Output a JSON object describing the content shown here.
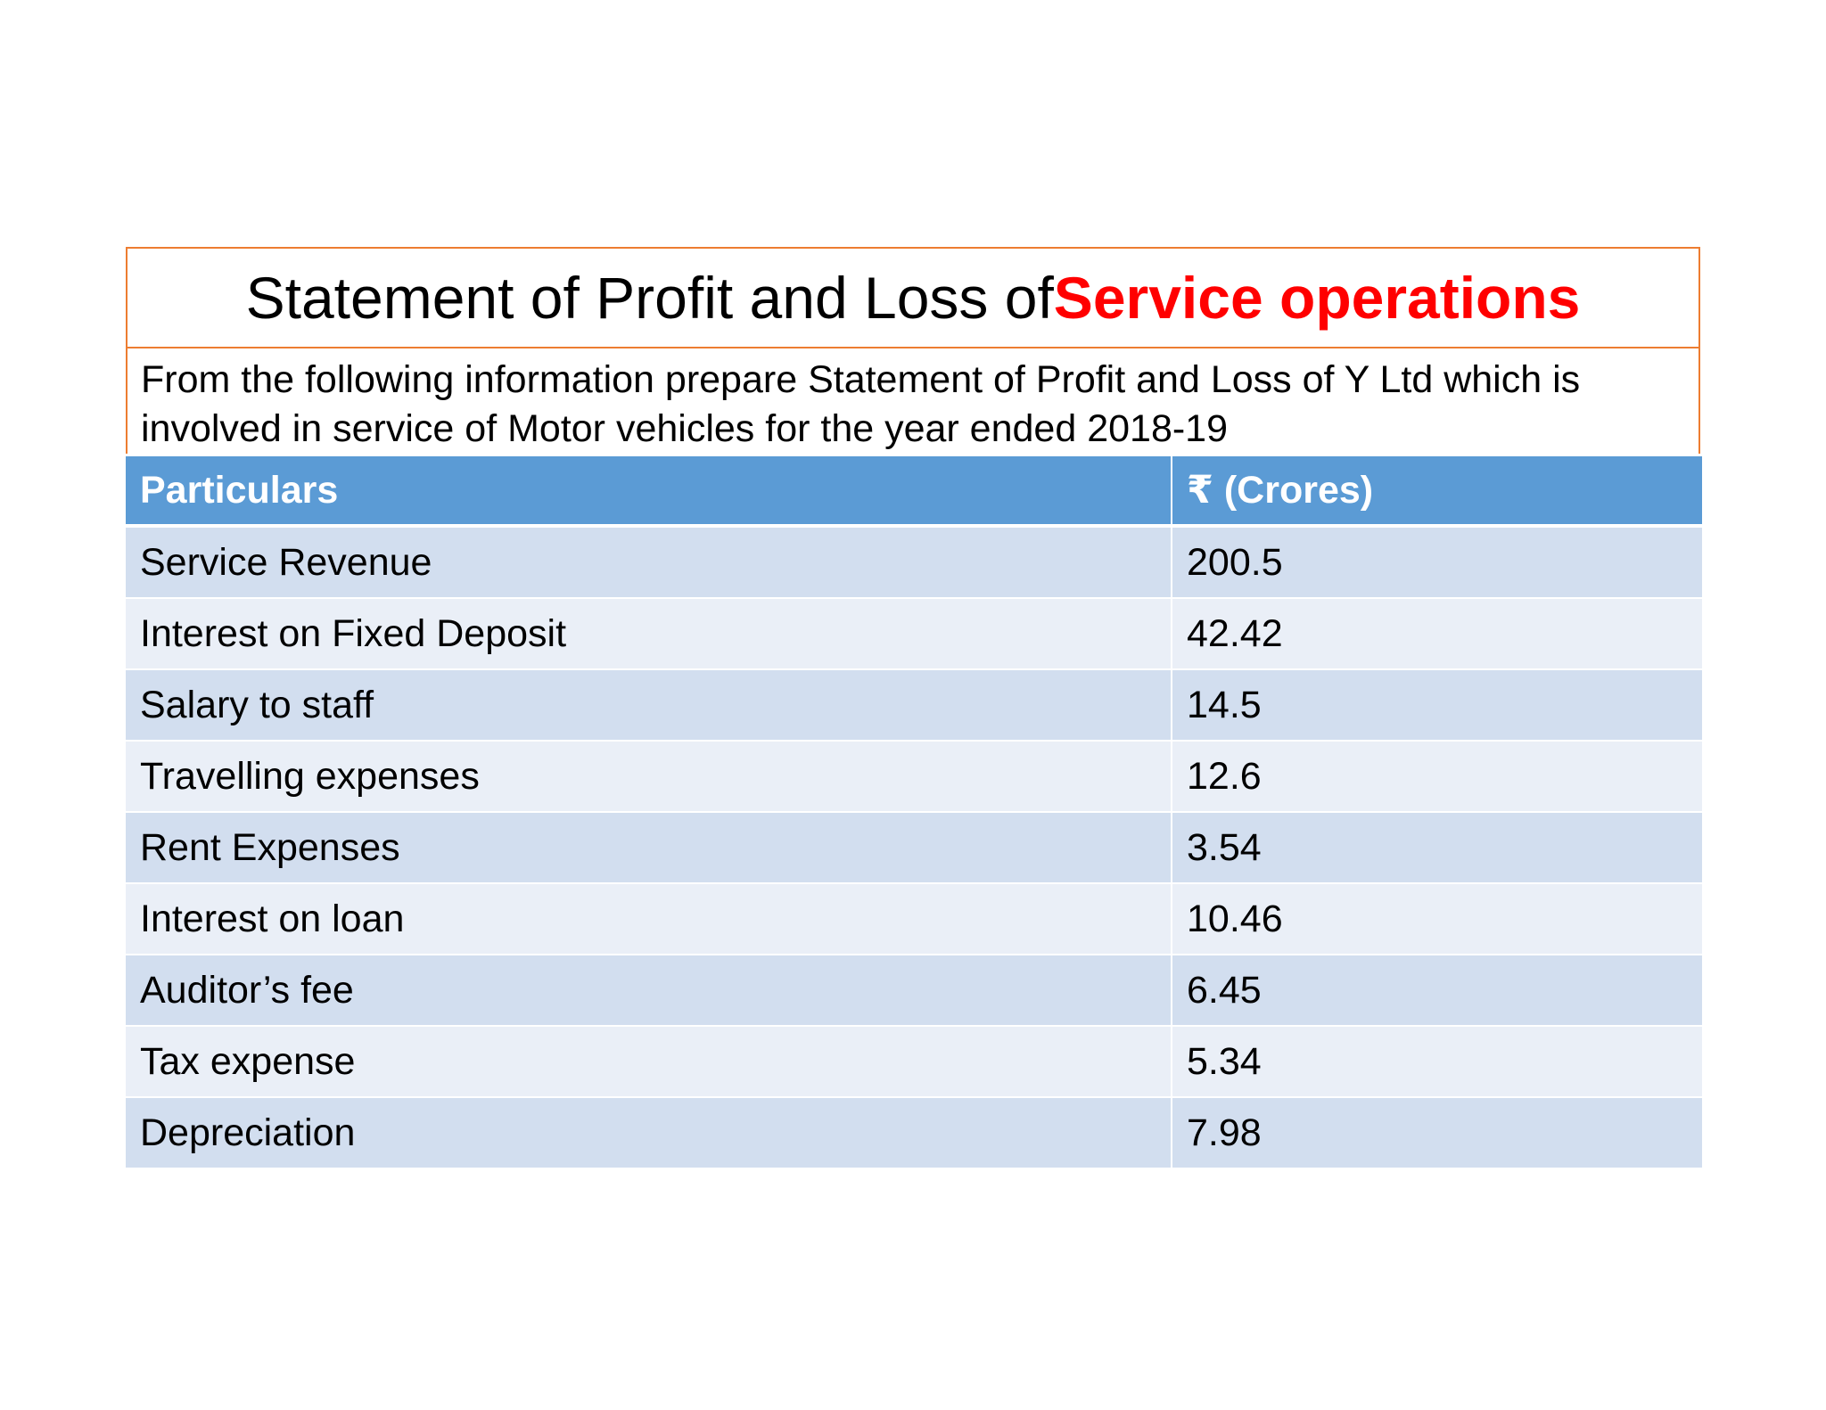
{
  "title": {
    "prefix": "Statement of Profit and Loss of ",
    "highlight": "Service operations"
  },
  "description": "From the following information prepare Statement of Profit and Loss of Y Ltd which is involved in service of Motor vehicles for the year ended 2018-19",
  "colors": {
    "accent_border": "#ed7d31",
    "highlight_text": "#ff0000",
    "header_fill": "#5b9bd5",
    "row_dark": "#d2deef",
    "row_light": "#eaeff7"
  },
  "table": {
    "headers": [
      "Particulars",
      "₹ (Crores)"
    ],
    "rows": [
      [
        "Service Revenue",
        "200.5"
      ],
      [
        "Interest on Fixed Deposit",
        "42.42"
      ],
      [
        "Salary to staff",
        "14.5"
      ],
      [
        "Travelling expenses",
        "12.6"
      ],
      [
        "Rent Expenses",
        "3.54"
      ],
      [
        "Interest on loan",
        "10.46"
      ],
      [
        "Auditor’s fee",
        "6.45"
      ],
      [
        "Tax expense",
        "5.34"
      ],
      [
        "Depreciation",
        "7.98"
      ]
    ]
  }
}
